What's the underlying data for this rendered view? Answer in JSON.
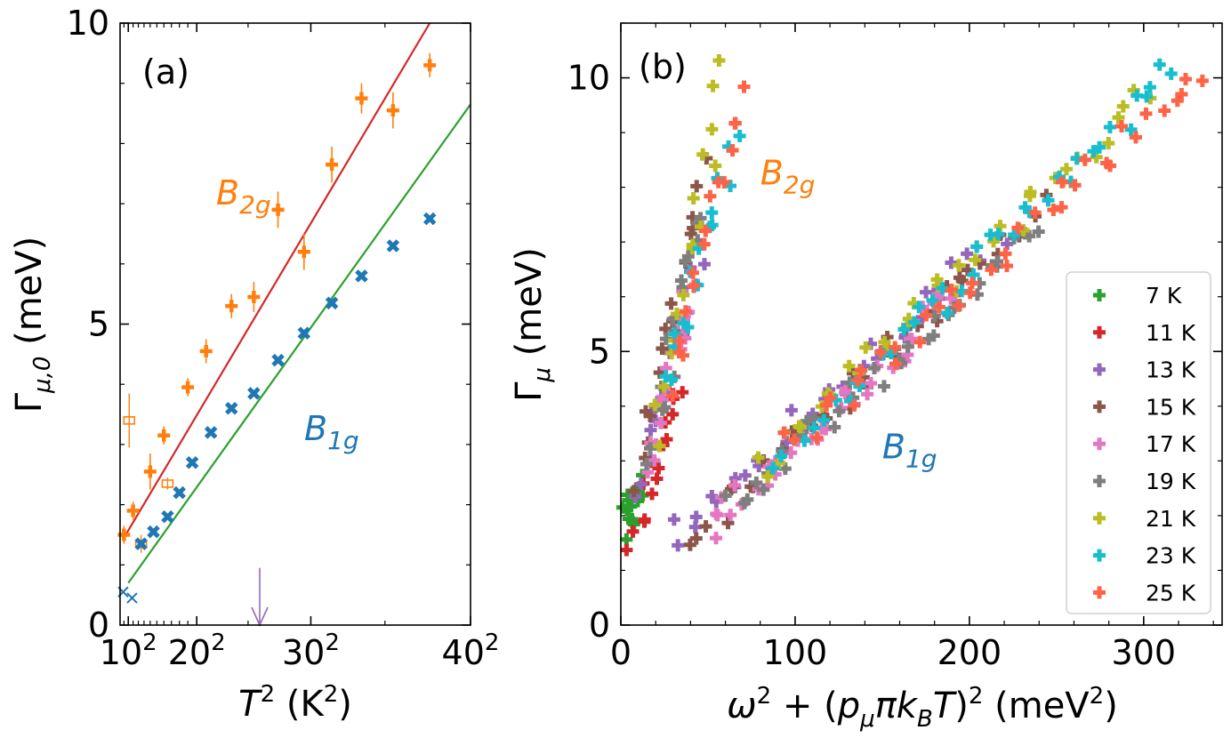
{
  "chart_data": [
    {
      "panel_label": "(a)",
      "type": "scatter",
      "xlabel": {
        "base": "T",
        "sup": "2",
        "unit_open": " (K",
        "unit_sup": "2",
        "unit_close": ")"
      },
      "ylabel": {
        "gamma": "Γ",
        "sub": "μ,0",
        "unit": " (meV)"
      },
      "xlim_T": [
        8,
        40
      ],
      "ylim": [
        0,
        10
      ],
      "x_ticks": [
        {
          "T": 10,
          "base": "10",
          "sup": "2"
        },
        {
          "T": 20,
          "base": "20",
          "sup": "2"
        },
        {
          "T": 30,
          "base": "30",
          "sup": "2"
        },
        {
          "T": 40,
          "base": "40",
          "sup": "2"
        }
      ],
      "y_ticks": [
        {
          "value": 0,
          "label": "0"
        },
        {
          "value": 5,
          "label": "5"
        },
        {
          "value": 10,
          "label": "10"
        }
      ],
      "series": [
        {
          "name": "B2g",
          "label_main": "B",
          "label_sub": "2g",
          "color": "#ff7f0e",
          "marker": "plus",
          "points": [
            {
              "T": 9,
              "y": 1.5,
              "err": 0.15
            },
            {
              "T": 11,
              "y": 1.9,
              "err": 0.15
            },
            {
              "T": 14,
              "y": 2.55,
              "err": 0.3
            },
            {
              "T": 16,
              "y": 3.15,
              "err": 0.15
            },
            {
              "T": 19,
              "y": 3.95,
              "err": 0.15
            },
            {
              "T": 21,
              "y": 4.55,
              "err": 0.2
            },
            {
              "T": 23.5,
              "y": 5.3,
              "err": 0.2
            },
            {
              "T": 25.5,
              "y": 5.45,
              "err": 0.25
            },
            {
              "T": 27.5,
              "y": 6.9,
              "err": 0.3
            },
            {
              "T": 29.5,
              "y": 6.2,
              "err": 0.3
            },
            {
              "T": 31.5,
              "y": 7.65,
              "err": 0.3
            },
            {
              "T": 33.5,
              "y": 8.75,
              "err": 0.25
            },
            {
              "T": 35.5,
              "y": 8.55,
              "err": 0.3
            },
            {
              "T": 37.7,
              "y": 9.3,
              "err": 0.2
            }
          ],
          "open_points": [
            {
              "T": 10.2,
              "y": 3.4,
              "err": 0.45
            },
            {
              "T": 12.5,
              "y": 1.35,
              "err": 0.15
            },
            {
              "T": 16.5,
              "y": 2.35,
              "err": 0.1
            }
          ],
          "fit_line": {
            "x0_T": 9,
            "y0": 1.45,
            "x1_T": 37.7,
            "y1": 10.0,
            "color": "#d62728"
          }
        },
        {
          "name": "B1g",
          "label_main": "B",
          "label_sub": "1g",
          "color": "#1f77b4",
          "marker": "x",
          "points": [
            {
              "T": 12.5,
              "y": 1.35
            },
            {
              "T": 14.5,
              "y": 1.55
            },
            {
              "T": 16.5,
              "y": 1.8
            },
            {
              "T": 18,
              "y": 2.2
            },
            {
              "T": 19.5,
              "y": 2.7
            },
            {
              "T": 21.5,
              "y": 3.2
            },
            {
              "T": 23.5,
              "y": 3.6
            },
            {
              "T": 25.5,
              "y": 3.85
            },
            {
              "T": 27.5,
              "y": 4.4
            },
            {
              "T": 29.5,
              "y": 4.85
            },
            {
              "T": 31.5,
              "y": 5.35
            },
            {
              "T": 33.5,
              "y": 5.8
            },
            {
              "T": 35.5,
              "y": 6.3
            },
            {
              "T": 37.7,
              "y": 6.75
            }
          ],
          "open_points": [
            {
              "T": 8.8,
              "y": 0.55
            },
            {
              "T": 10.8,
              "y": 0.45
            }
          ],
          "fit_line": {
            "x0_T": 10,
            "y0": 0.7,
            "x1_T": 40,
            "y1": 8.65,
            "color": "#2ca02c"
          }
        }
      ],
      "arrow": {
        "T": 26,
        "y_from": 0.95,
        "y_to": 0.0,
        "color": "#9467bd"
      }
    },
    {
      "panel_label": "(b)",
      "type": "scatter",
      "xlabel": {
        "text": "ω² + (p_μ π k_B T)² (meV²)",
        "omega": "ω",
        "two": "2",
        "plus": " + (",
        "p": "p",
        "pi": "π",
        "k": "k",
        "kb_sub": "B",
        "T": "T",
        "close": ")",
        "unit": " (meV",
        "unit_close": ")"
      },
      "ylabel": {
        "gamma": "Γ",
        "sub": "μ",
        "unit": " (meV)"
      },
      "xlim": [
        0,
        345
      ],
      "ylim": [
        0,
        11
      ],
      "x_ticks": [
        {
          "value": 0,
          "label": "0"
        },
        {
          "value": 100,
          "label": "100"
        },
        {
          "value": 200,
          "label": "200"
        },
        {
          "value": 300,
          "label": "300"
        }
      ],
      "y_ticks": [
        {
          "value": 0,
          "label": "0"
        },
        {
          "value": 5,
          "label": "5"
        },
        {
          "value": 10,
          "label": "10"
        }
      ],
      "annotations": [
        {
          "main": "B",
          "sub": "2g",
          "x": 80,
          "y": 8.05,
          "color": "#ff7f0e"
        },
        {
          "main": "B",
          "sub": "1g",
          "x": 150,
          "y": 3.05,
          "color": "#1f77b4"
        }
      ],
      "legend": {
        "position": "lower right",
        "entries": [
          {
            "label": "7 K",
            "color": "#2ca02c"
          },
          {
            "label": "11 K",
            "color": "#d62728"
          },
          {
            "label": "13 K",
            "color": "#9467bd"
          },
          {
            "label": "15 K",
            "color": "#8c564b"
          },
          {
            "label": "17 K",
            "color": "#e377c2"
          },
          {
            "label": "19 K",
            "color": "#7f7f7f"
          },
          {
            "label": "21 K",
            "color": "#bcbd22"
          },
          {
            "label": "23 K",
            "color": "#17becf"
          },
          {
            "label": "25 K",
            "color": "#ff6347"
          }
        ]
      },
      "series_trends": [
        {
          "name": "B2g",
          "description": "steep branch",
          "segments_by_temperature": [
            {
              "temp": "7 K",
              "x_range": [
                2,
                10
              ],
              "y_range": [
                1.7,
                2.6
              ]
            },
            {
              "temp": "11 K",
              "x_range": [
                6,
                34
              ],
              "y_range": [
                1.5,
                4.6
              ]
            },
            {
              "temp": "13 K",
              "x_range": [
                10,
                44
              ],
              "y_range": [
                2.5,
                6.6
              ]
            },
            {
              "temp": "15 K",
              "x_range": [
                10,
                48
              ],
              "y_range": [
                2.4,
                8.4
              ]
            },
            {
              "temp": "17 K",
              "x_range": [
                14,
                42
              ],
              "y_range": [
                2.8,
                6.3
              ]
            },
            {
              "temp": "19 K",
              "x_range": [
                18,
                46
              ],
              "y_range": [
                3.2,
                7.6
              ]
            },
            {
              "temp": "21 K",
              "x_range": [
                20,
                58
              ],
              "y_range": [
                3.6,
                10.0
              ]
            },
            {
              "temp": "23 K",
              "x_range": [
                24,
                66
              ],
              "y_range": [
                4.2,
                8.8
              ]
            },
            {
              "temp": "25 K",
              "x_range": [
                28,
                70
              ],
              "y_range": [
                4.4,
                9.8
              ]
            }
          ]
        },
        {
          "name": "B1g",
          "description": "shallow branch",
          "segments_by_temperature": [
            {
              "temp": "13 K",
              "x_range": [
                30,
                220
              ],
              "y_range": [
                1.5,
                7.2
              ]
            },
            {
              "temp": "15 K",
              "x_range": [
                42,
                240
              ],
              "y_range": [
                1.6,
                7.6
              ]
            },
            {
              "temp": "17 K",
              "x_range": [
                50,
                190
              ],
              "y_range": [
                1.8,
                6.0
              ]
            },
            {
              "temp": "19 K",
              "x_range": [
                62,
                240
              ],
              "y_range": [
                2.2,
                7.2
              ]
            },
            {
              "temp": "21 K",
              "x_range": [
                74,
                300
              ],
              "y_range": [
                2.8,
                9.7
              ]
            },
            {
              "temp": "23 K",
              "x_range": [
                90,
                320
              ],
              "y_range": [
                3.1,
                10.2
              ]
            },
            {
              "temp": "25 K",
              "x_range": [
                98,
                334
              ],
              "y_range": [
                3.3,
                10.2
              ]
            }
          ]
        }
      ]
    }
  ]
}
